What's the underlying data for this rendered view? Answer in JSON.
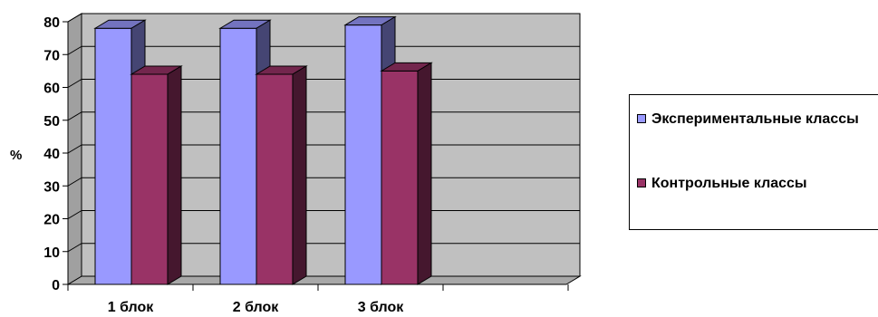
{
  "chart_data": {
    "type": "bar",
    "categories": [
      "1 блок",
      "2 блок",
      "3 блок"
    ],
    "series": [
      {
        "name": "Экспериментальные классы",
        "values": [
          78,
          78,
          79
        ],
        "color": "#9999ff"
      },
      {
        "name": "Контрольные классы",
        "values": [
          64,
          64,
          65
        ],
        "color": "#993366"
      }
    ],
    "ylabel": "%",
    "ylim": [
      0,
      80
    ],
    "yticks": [
      0,
      10,
      20,
      30,
      40,
      50,
      60,
      70,
      80
    ],
    "grid": true,
    "legend_position": "right",
    "plot_color": "#c0c0c0"
  }
}
